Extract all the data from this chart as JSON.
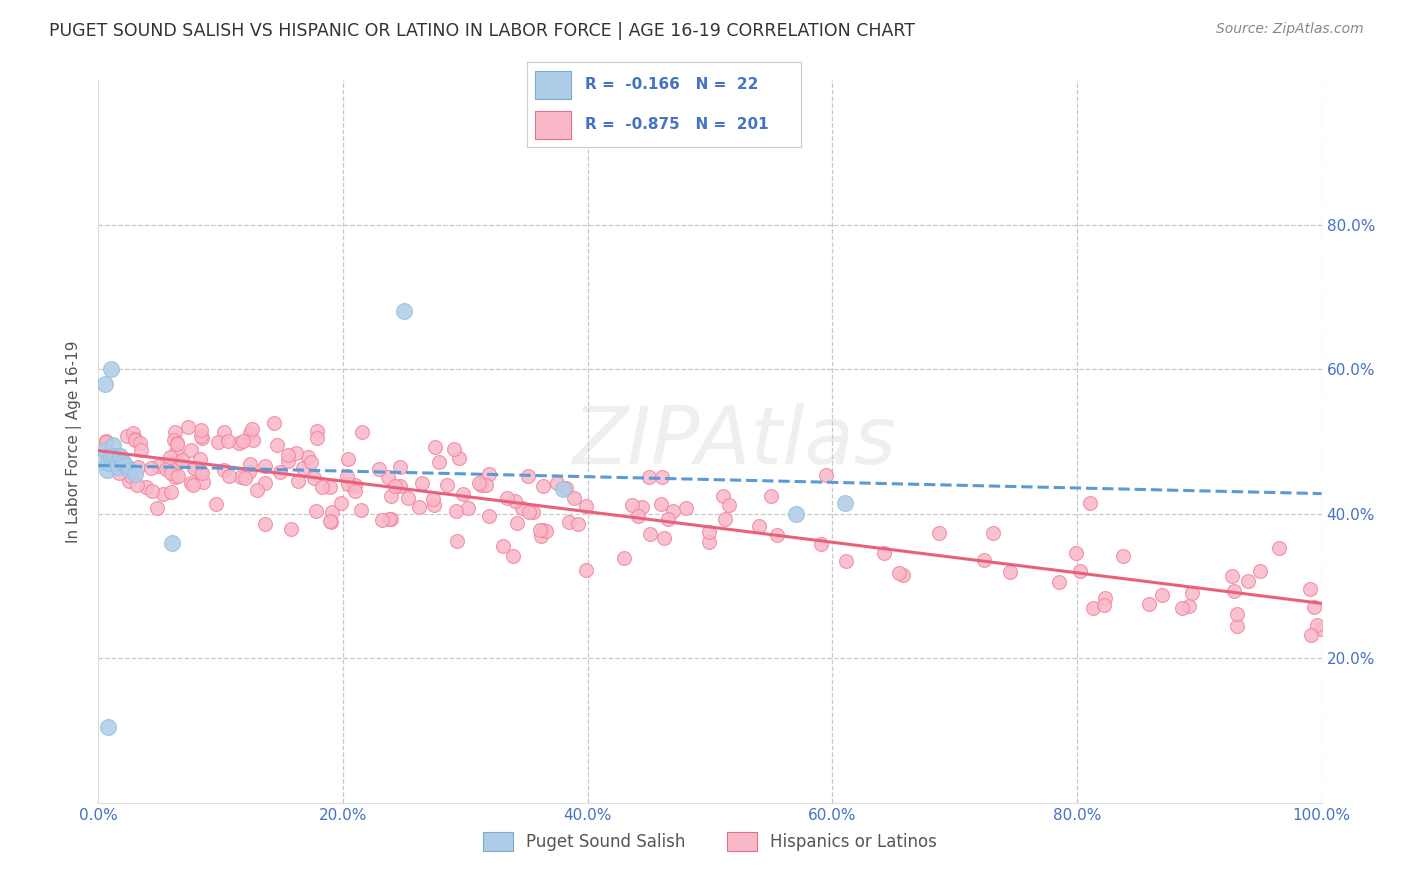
{
  "title": "PUGET SOUND SALISH VS HISPANIC OR LATINO IN LABOR FORCE | AGE 16-19 CORRELATION CHART",
  "source": "Source: ZipAtlas.com",
  "ylabel": "In Labor Force | Age 16-19",
  "watermark": "ZIPAtlas",
  "blue_color": "#92c0e0",
  "pink_color": "#f4849c",
  "blue_fill": "#aecce8",
  "pink_fill": "#f8b8c8",
  "blue_line_color": "#5b9bd5",
  "pink_line_color": "#e8607a",
  "bg_color": "#ffffff",
  "grid_color": "#c8c8c8",
  "axis_tick_color": "#4472c4",
  "ylabel_color": "#555555",
  "title_color": "#333333",
  "legend_text_color": "#4472c4",
  "source_color": "#888888",
  "xlim": [
    0.0,
    1.0
  ],
  "ylim": [
    0.0,
    1.0
  ],
  "xtick_vals": [
    0.0,
    0.2,
    0.4,
    0.6,
    0.8,
    1.0
  ],
  "ytick_vals": [
    0.2,
    0.4,
    0.6,
    0.8
  ],
  "pink_r": -0.875,
  "pink_n": 201,
  "blue_r": -0.166,
  "blue_n": 22,
  "blue_line_start_y": 0.455,
  "blue_line_end_y": 0.34,
  "pink_line_start_y": 0.47,
  "pink_line_end_y": 0.25
}
